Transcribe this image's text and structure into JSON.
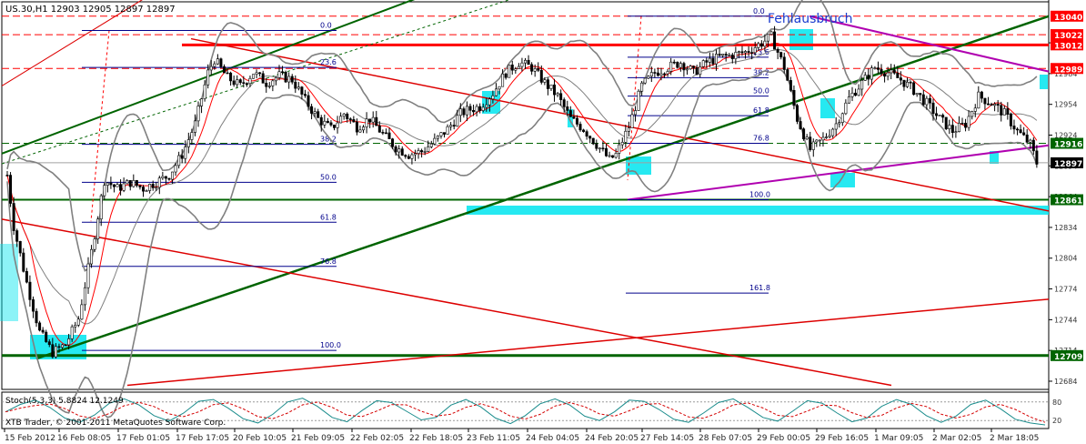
{
  "window": {
    "header": "US.30,H1  12903 12905 12897 12897",
    "copyright": "XTB Trader, © 2001-2011 MetaQuotes Software Corp."
  },
  "annotations": {
    "fehlausbruch": "Fehlausbruch"
  },
  "colors": {
    "background": "#ffffff",
    "candle": "#000000",
    "bollinger": "#808080",
    "ma": "#ff0000",
    "trend_green": "#006400",
    "trend_red": "#dd0000",
    "magenta": "#b000b0",
    "fib": "#00008b",
    "cyan": "#00e5ee",
    "price_red": "#ff0000",
    "price_green": "#006400"
  },
  "chart_data": [
    {
      "type": "candlestick",
      "symbol": "US.30",
      "timeframe": "H1",
      "quote": {
        "open": 12903,
        "high": 12905,
        "low": 12897,
        "close": 12897
      },
      "y_ticks": [
        12684,
        12714,
        12744,
        12774,
        12804,
        12834,
        12864,
        12894,
        12924,
        12954,
        12984,
        13014
      ],
      "x_ticks": [
        "15 Feb 2012",
        "16 Feb 08:05",
        "17 Feb 01:05",
        "17 Feb 17:05",
        "20 Feb 10:05",
        "21 Feb 09:05",
        "22 Feb 02:05",
        "22 Feb 18:05",
        "23 Feb 11:05",
        "24 Feb 04:05",
        "24 Feb 20:05",
        "27 Feb 14:05",
        "28 Feb 07:05",
        "29 Feb 00:05",
        "29 Feb 16:05",
        "1 Mar 09:05",
        "2 Mar 02:05",
        "2 Mar 18:05"
      ],
      "ylim": [
        12676,
        13054
      ],
      "price_marks": [
        {
          "value": 13040,
          "color": "#ff0000"
        },
        {
          "value": 13022,
          "color": "#ff0000"
        },
        {
          "value": 13012,
          "color": "#ff0000"
        },
        {
          "value": 12989,
          "color": "#ff0000"
        },
        {
          "value": 12916,
          "color": "#006400"
        },
        {
          "value": 12897,
          "color": "#000000"
        },
        {
          "value": 12861,
          "color": "#006400"
        },
        {
          "value": 12709,
          "color": "#006400"
        }
      ],
      "fib_levels_1": [
        "0.0",
        "23.6",
        "38.2",
        "50.0",
        "61.8",
        "76.8",
        "100.0"
      ],
      "fib_levels_2": [
        "0.0",
        "23.6",
        "38.2",
        "50.0",
        "61.8",
        "76.8",
        "100.0",
        "161.8"
      ],
      "close_path": [
        {
          "i": 0,
          "v": 12885
        },
        {
          "i": 2,
          "v": 12835
        },
        {
          "i": 6,
          "v": 12780
        },
        {
          "i": 10,
          "v": 12732
        },
        {
          "i": 14,
          "v": 12712
        },
        {
          "i": 18,
          "v": 12720
        },
        {
          "i": 22,
          "v": 12745
        },
        {
          "i": 26,
          "v": 12810
        },
        {
          "i": 30,
          "v": 12880
        },
        {
          "i": 34,
          "v": 12872
        },
        {
          "i": 38,
          "v": 12878
        },
        {
          "i": 42,
          "v": 12872
        },
        {
          "i": 46,
          "v": 12878
        },
        {
          "i": 50,
          "v": 12885
        },
        {
          "i": 54,
          "v": 12905
        },
        {
          "i": 58,
          "v": 12935
        },
        {
          "i": 62,
          "v": 12985
        },
        {
          "i": 64,
          "v": 12998
        },
        {
          "i": 68,
          "v": 12980
        },
        {
          "i": 72,
          "v": 12972
        },
        {
          "i": 76,
          "v": 12985
        },
        {
          "i": 80,
          "v": 12975
        },
        {
          "i": 84,
          "v": 12982
        },
        {
          "i": 88,
          "v": 12978
        },
        {
          "i": 92,
          "v": 12958
        },
        {
          "i": 96,
          "v": 12940
        },
        {
          "i": 100,
          "v": 12930
        },
        {
          "i": 104,
          "v": 12945
        },
        {
          "i": 108,
          "v": 12932
        },
        {
          "i": 112,
          "v": 12940
        },
        {
          "i": 116,
          "v": 12925
        },
        {
          "i": 120,
          "v": 12912
        },
        {
          "i": 124,
          "v": 12905
        },
        {
          "i": 128,
          "v": 12908
        },
        {
          "i": 132,
          "v": 12918
        },
        {
          "i": 136,
          "v": 12930
        },
        {
          "i": 140,
          "v": 12945
        },
        {
          "i": 142,
          "v": 12948
        },
        {
          "i": 146,
          "v": 12952
        },
        {
          "i": 150,
          "v": 12965
        },
        {
          "i": 154,
          "v": 12985
        },
        {
          "i": 158,
          "v": 12995
        },
        {
          "i": 162,
          "v": 12990
        },
        {
          "i": 166,
          "v": 12975
        },
        {
          "i": 170,
          "v": 12962
        },
        {
          "i": 174,
          "v": 12940
        },
        {
          "i": 178,
          "v": 12930
        },
        {
          "i": 182,
          "v": 12915
        },
        {
          "i": 186,
          "v": 12900
        },
        {
          "i": 188,
          "v": 12905
        },
        {
          "i": 192,
          "v": 12932
        },
        {
          "i": 196,
          "v": 12972
        },
        {
          "i": 200,
          "v": 12985
        },
        {
          "i": 204,
          "v": 12990
        },
        {
          "i": 208,
          "v": 12995
        },
        {
          "i": 212,
          "v": 12985
        },
        {
          "i": 216,
          "v": 12995
        },
        {
          "i": 220,
          "v": 13000
        },
        {
          "i": 224,
          "v": 13002
        },
        {
          "i": 228,
          "v": 13005
        },
        {
          "i": 232,
          "v": 13012
        },
        {
          "i": 236,
          "v": 13020
        },
        {
          "i": 240,
          "v": 12990
        },
        {
          "i": 244,
          "v": 12940
        },
        {
          "i": 248,
          "v": 12910
        },
        {
          "i": 252,
          "v": 12920
        },
        {
          "i": 256,
          "v": 12935
        },
        {
          "i": 260,
          "v": 12960
        },
        {
          "i": 264,
          "v": 12975
        },
        {
          "i": 268,
          "v": 12990
        },
        {
          "i": 272,
          "v": 12985
        },
        {
          "i": 276,
          "v": 12978
        },
        {
          "i": 280,
          "v": 12968
        },
        {
          "i": 284,
          "v": 12955
        },
        {
          "i": 288,
          "v": 12940
        },
        {
          "i": 292,
          "v": 12928
        },
        {
          "i": 296,
          "v": 12935
        },
        {
          "i": 300,
          "v": 12962
        },
        {
          "i": 304,
          "v": 12955
        },
        {
          "i": 308,
          "v": 12945
        },
        {
          "i": 312,
          "v": 12928
        },
        {
          "i": 316,
          "v": 12915
        },
        {
          "i": 318,
          "v": 12897
        }
      ]
    },
    {
      "type": "line",
      "title": "Stoch(5,3,3) 5.8824 12.1249",
      "y_ticks": [
        "80",
        "20"
      ],
      "ylim": [
        0,
        100
      ],
      "values": [
        48,
        72,
        86,
        62,
        28,
        14,
        38,
        76,
        90,
        70,
        36,
        18,
        44,
        82,
        88,
        60,
        26,
        12,
        40,
        80,
        92,
        66,
        30,
        16,
        52,
        84,
        78,
        50,
        22,
        30,
        70,
        88,
        64,
        28,
        10,
        36,
        74,
        90,
        70,
        34,
        20,
        48,
        86,
        82,
        56,
        24,
        14,
        44,
        78,
        90,
        62,
        30,
        18,
        50,
        84,
        76,
        44,
        16,
        28,
        66,
        88,
        72,
        36,
        14,
        34,
        72,
        86,
        58,
        24,
        12,
        6
      ]
    }
  ]
}
